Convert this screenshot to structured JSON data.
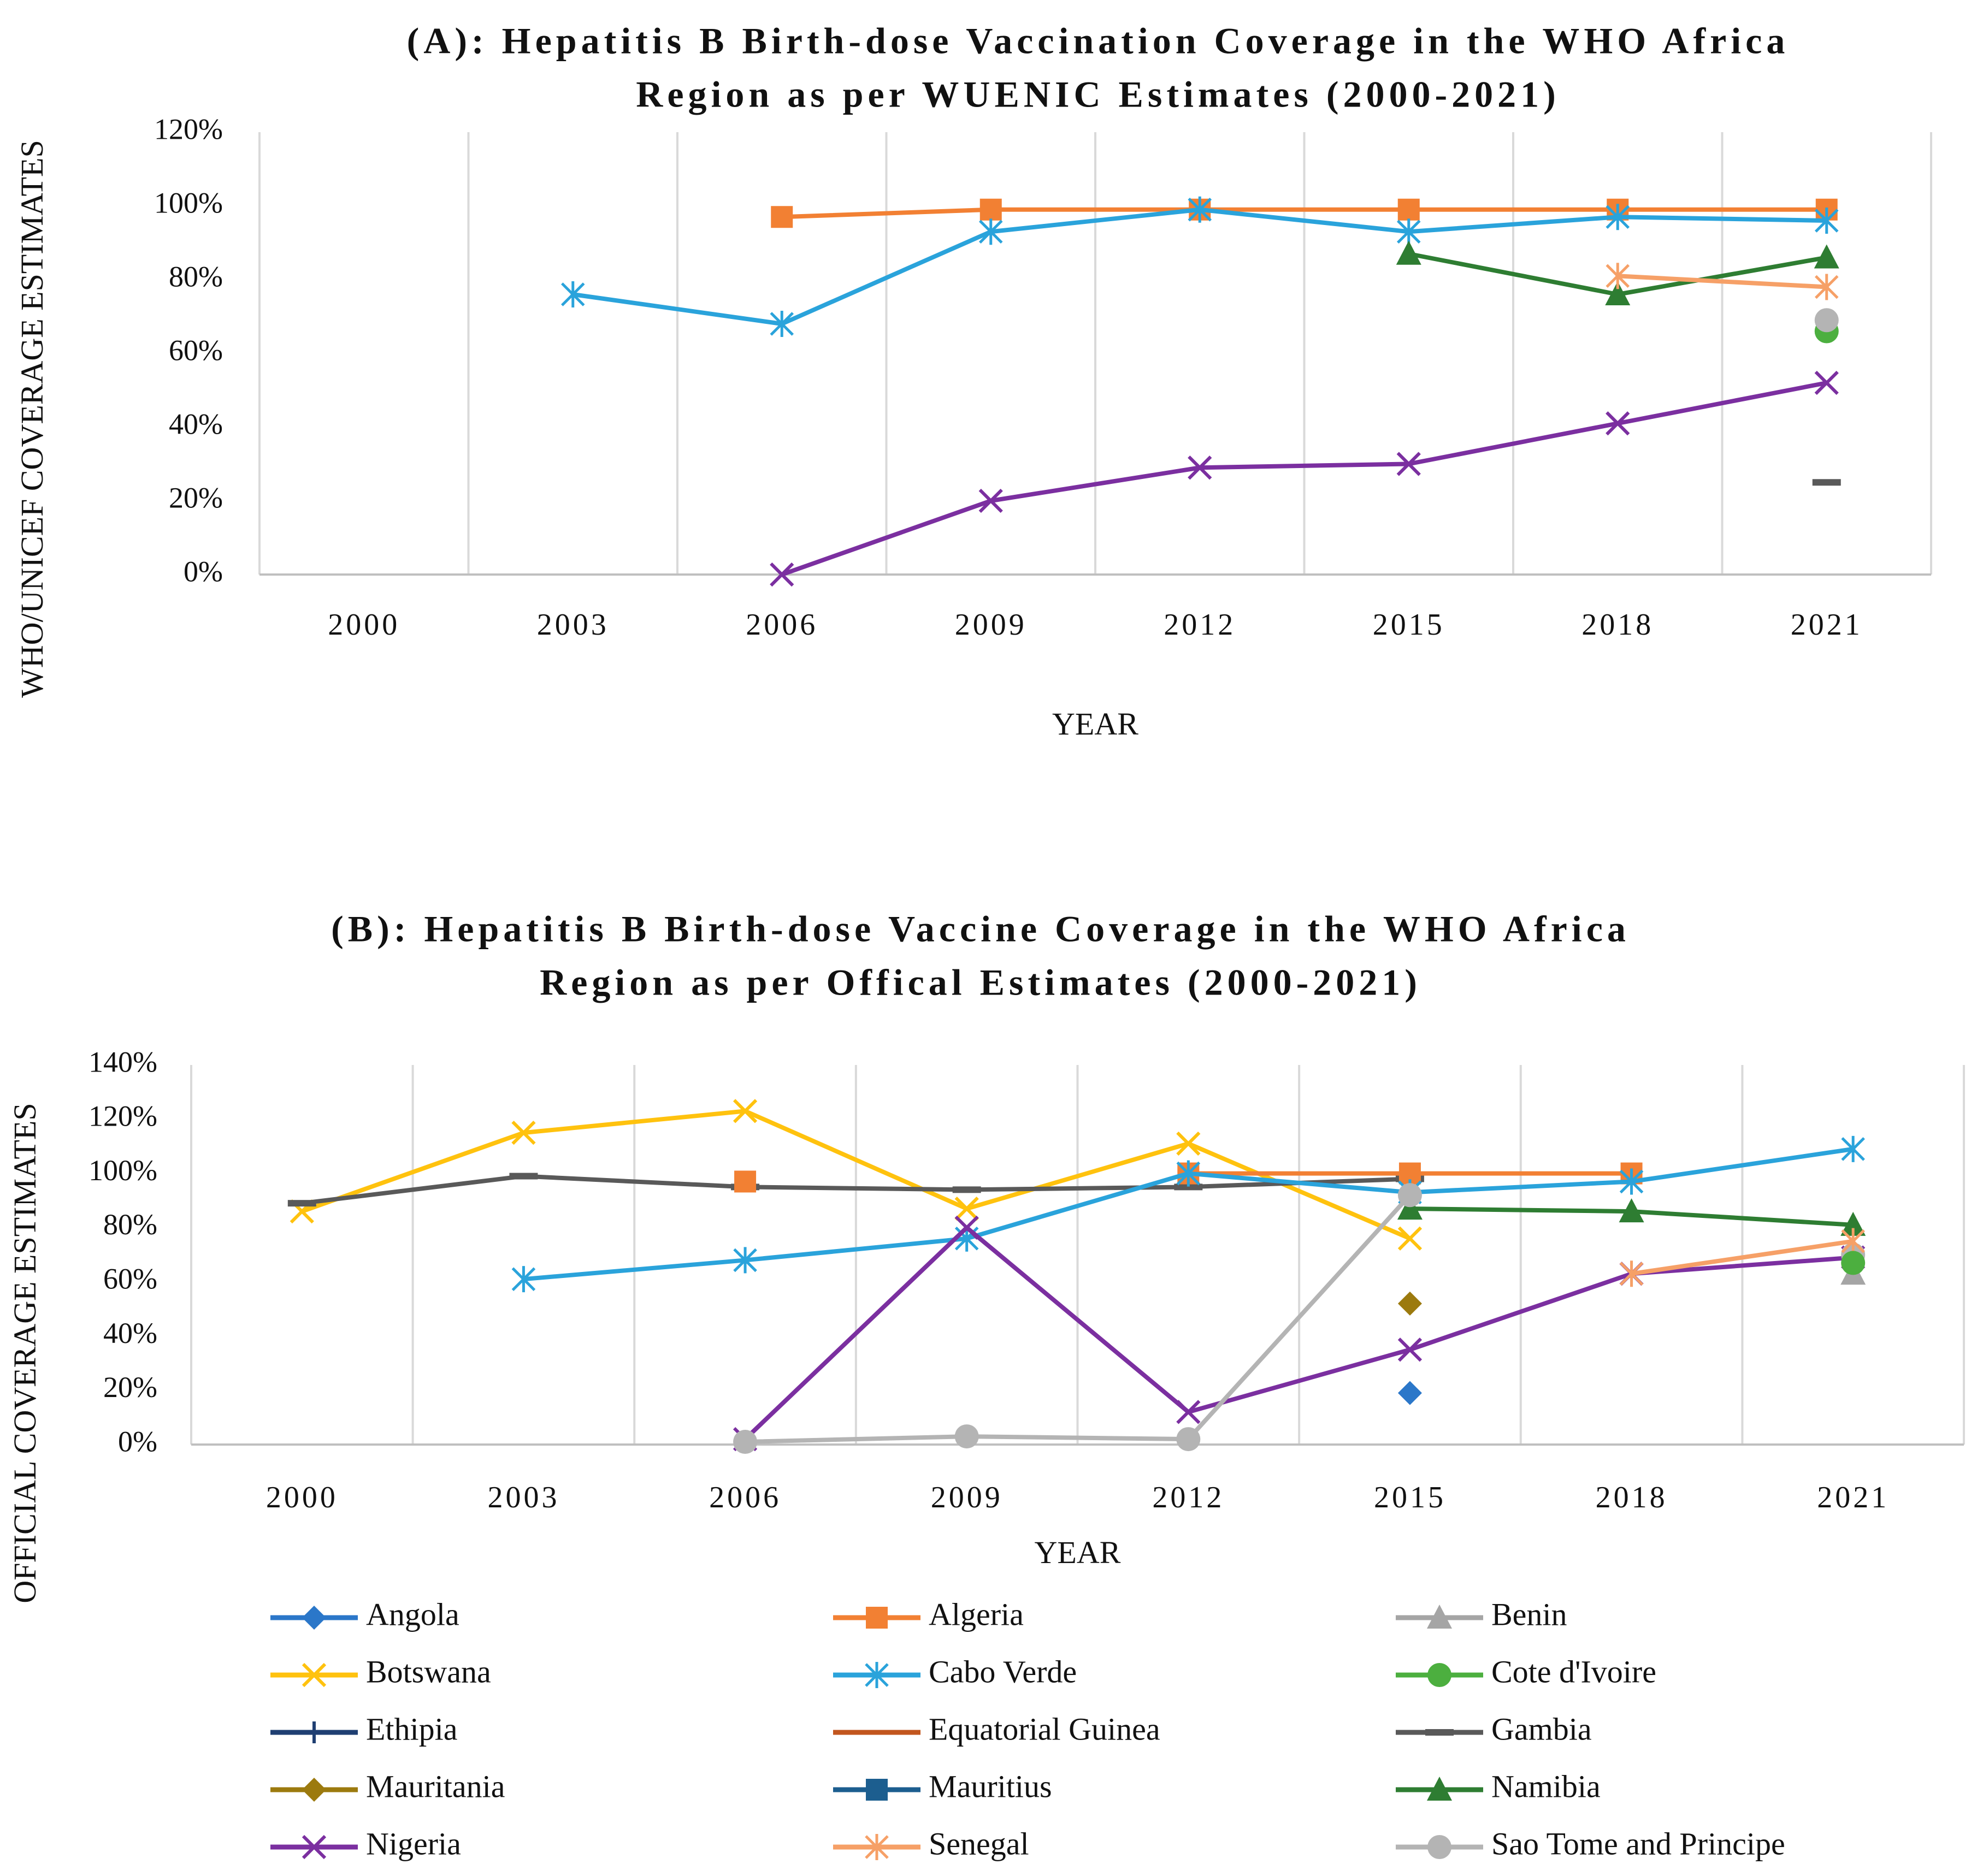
{
  "chart_data": [
    {
      "type": "line",
      "panel": "A",
      "title": [
        "(A): Hepatitis B Birth-dose Vaccination Coverage in the WHO Africa",
        "Region as per WUENIC Estimates (2000-2021)"
      ],
      "xlabel": "YEAR",
      "ylabel": "WHO/UNICEF COVERAGE ESTIMATES",
      "categories": [
        "2000",
        "2003",
        "2006",
        "2009",
        "2012",
        "2015",
        "2018",
        "2021"
      ],
      "ylim": [
        0,
        120
      ],
      "ytick_step": 20,
      "ytick_suffix": "%",
      "grid": "vertical",
      "series": [
        {
          "name": "Algeria",
          "values": [
            null,
            null,
            97,
            99,
            99,
            99,
            99,
            99
          ]
        },
        {
          "name": "Cabo Verde",
          "values": [
            null,
            76,
            68,
            93,
            99,
            93,
            97,
            96
          ]
        },
        {
          "name": "Namibia",
          "values": [
            null,
            null,
            null,
            null,
            null,
            87,
            76,
            86
          ]
        },
        {
          "name": "Senegal",
          "values": [
            null,
            null,
            null,
            null,
            null,
            null,
            81,
            78
          ]
        },
        {
          "name": "Cote d'Ivoire",
          "values": [
            null,
            null,
            null,
            null,
            null,
            null,
            null,
            66
          ]
        },
        {
          "name": "Sao Tome and Principe",
          "values": [
            null,
            null,
            null,
            null,
            null,
            null,
            null,
            69
          ]
        },
        {
          "name": "Nigeria",
          "values": [
            null,
            null,
            0,
            20,
            29,
            30,
            41,
            52
          ]
        },
        {
          "name": "Gambia",
          "values": [
            null,
            null,
            null,
            null,
            null,
            null,
            null,
            25
          ]
        }
      ]
    },
    {
      "type": "line",
      "panel": "B",
      "title": [
        "(B): Hepatitis B Birth-dose Vaccine Coverage in the WHO Africa",
        "Region as per Offical Estimates (2000-2021)"
      ],
      "xlabel": "YEAR",
      "ylabel": "OFFICIAL COVERAGE ESTIMATES",
      "categories": [
        "2000",
        "2003",
        "2006",
        "2009",
        "2012",
        "2015",
        "2018",
        "2021"
      ],
      "ylim": [
        0,
        140
      ],
      "ytick_step": 20,
      "ytick_suffix": "%",
      "grid": "vertical",
      "series": [
        {
          "name": "Botswana",
          "values": [
            86,
            115,
            123,
            87,
            111,
            76,
            null,
            null
          ]
        },
        {
          "name": "Gambia",
          "values": [
            89,
            99,
            95,
            94,
            95,
            98,
            null,
            null
          ]
        },
        {
          "name": "Algeria",
          "values": [
            null,
            null,
            97,
            null,
            100,
            100,
            100,
            null
          ]
        },
        {
          "name": "Cabo Verde",
          "values": [
            null,
            61,
            68,
            76,
            100,
            93,
            97,
            109
          ]
        },
        {
          "name": "Namibia",
          "values": [
            null,
            null,
            null,
            null,
            null,
            87,
            86,
            81
          ]
        },
        {
          "name": "Nigeria",
          "values": [
            null,
            null,
            2,
            80,
            12,
            35,
            63,
            69
          ]
        },
        {
          "name": "Sao Tome and Principe",
          "values": [
            null,
            null,
            1,
            3,
            2,
            92,
            null,
            70
          ]
        },
        {
          "name": "Senegal",
          "values": [
            null,
            null,
            null,
            null,
            null,
            null,
            63,
            75
          ]
        },
        {
          "name": "Benin",
          "values": [
            null,
            null,
            null,
            null,
            null,
            null,
            null,
            63
          ]
        },
        {
          "name": "Cote d'Ivoire",
          "values": [
            null,
            null,
            null,
            null,
            null,
            null,
            null,
            67
          ]
        },
        {
          "name": "Mauritania",
          "values": [
            null,
            null,
            null,
            null,
            null,
            52,
            null,
            null
          ]
        },
        {
          "name": "Angola",
          "values": [
            null,
            null,
            null,
            null,
            null,
            19,
            null,
            null
          ]
        }
      ]
    }
  ],
  "legend": {
    "position": "bottom",
    "entries": [
      {
        "name": "Angola",
        "color": "#2b77c9",
        "marker": "diamond"
      },
      {
        "name": "Algeria",
        "color": "#f28033",
        "marker": "square"
      },
      {
        "name": "Benin",
        "color": "#a5a5a5",
        "marker": "triangle"
      },
      {
        "name": "Botswana",
        "color": "#ffc20e",
        "marker": "x"
      },
      {
        "name": "Cabo Verde",
        "color": "#2aa3db",
        "marker": "asterisk"
      },
      {
        "name": "Cote d'Ivoire",
        "color": "#4caf3f",
        "marker": "circle"
      },
      {
        "name": "Ethipia",
        "color": "#1f3f72",
        "marker": "plus"
      },
      {
        "name": "Equatorial Guinea",
        "color": "#c2561e",
        "marker": "none"
      },
      {
        "name": "Gambia",
        "color": "#595959",
        "marker": "dash"
      },
      {
        "name": "Mauritania",
        "color": "#9c7a0e",
        "marker": "diamond"
      },
      {
        "name": "Mauritius",
        "color": "#1c5e8f",
        "marker": "square"
      },
      {
        "name": "Namibia",
        "color": "#2e7d32",
        "marker": "triangle"
      },
      {
        "name": "Nigeria",
        "color": "#7b2fa0",
        "marker": "x"
      },
      {
        "name": "Senegal",
        "color": "#f6a067",
        "marker": "asterisk"
      },
      {
        "name": "Sao Tome and Principe",
        "color": "#b4b4b4",
        "marker": "circle"
      }
    ]
  }
}
